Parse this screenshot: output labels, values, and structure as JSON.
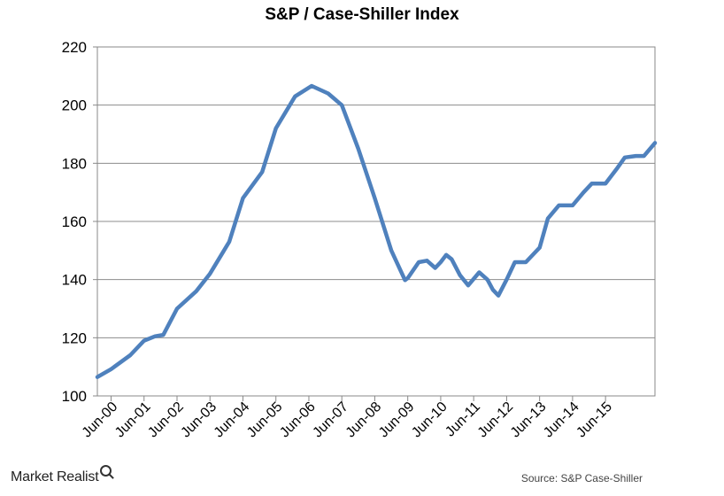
{
  "chart_data": {
    "type": "line",
    "title": "S&P / Case-Shiller Index",
    "xlabel": "",
    "ylabel": "",
    "ylim": [
      100,
      220
    ],
    "yticks": [
      100,
      120,
      140,
      160,
      180,
      200,
      220
    ],
    "xticks": [
      "Jun-00",
      "Jun-01",
      "Jun-02",
      "Jun-03",
      "Jun-04",
      "Jun-05",
      "Jun-06",
      "Jun-07",
      "Jun-08",
      "Jun-09",
      "Jun-10",
      "Jun-11",
      "Jun-12",
      "Jun-13",
      "Jun-14",
      "Jun-15"
    ],
    "grid": true,
    "line_color": "#4F81BD",
    "series": [
      {
        "points": [
          [
            "Jan-00",
            106.5
          ],
          [
            "Jun-00",
            109.2
          ],
          [
            "Jan-01",
            114.0
          ],
          [
            "Jun-01",
            119.0
          ],
          [
            "Oct-01",
            120.5
          ],
          [
            "Jan-02",
            121.0
          ],
          [
            "Jun-02",
            130.0
          ],
          [
            "Jan-03",
            136.0
          ],
          [
            "Jun-03",
            142.0
          ],
          [
            "Jan-04",
            153.0
          ],
          [
            "Jun-04",
            168.0
          ],
          [
            "Jan-05",
            177.0
          ],
          [
            "Jun-05",
            192.0
          ],
          [
            "Jan-06",
            203.0
          ],
          [
            "Jul-06",
            206.6
          ],
          [
            "Jan-07",
            204.0
          ],
          [
            "Jun-07",
            200.0
          ],
          [
            "Dec-07",
            185.0
          ],
          [
            "Jun-08",
            168.0
          ],
          [
            "Dec-08",
            150.0
          ],
          [
            "May-09",
            139.8
          ],
          [
            "Jun-09",
            140.5
          ],
          [
            "Oct-09",
            146.0
          ],
          [
            "Jan-10",
            146.5
          ],
          [
            "Apr-10",
            144.0
          ],
          [
            "Jun-10",
            146.0
          ],
          [
            "Aug-10",
            148.5
          ],
          [
            "Oct-10",
            147.0
          ],
          [
            "Jan-11",
            141.5
          ],
          [
            "Apr-11",
            138.0
          ],
          [
            "Aug-11",
            142.5
          ],
          [
            "Nov-11",
            140.0
          ],
          [
            "Jan-12",
            136.5
          ],
          [
            "Mar-12",
            134.5
          ],
          [
            "Jun-12",
            140.0
          ],
          [
            "Sep-12",
            146.0
          ],
          [
            "Jan-13",
            146.0
          ],
          [
            "Jun-13",
            151.0
          ],
          [
            "Sep-13",
            161.0
          ],
          [
            "Jan-14",
            165.5
          ],
          [
            "Jun-14",
            165.5
          ],
          [
            "Oct-14",
            170.0
          ],
          [
            "Jan-15",
            173.0
          ],
          [
            "Jun-15",
            173.0
          ],
          [
            "Oct-15",
            178.0
          ],
          [
            "Jan-16",
            182.0
          ],
          [
            "May-16",
            182.5
          ],
          [
            "Aug-16",
            182.5
          ],
          [
            "Dec-16",
            187.0
          ]
        ]
      }
    ]
  },
  "footer": {
    "brand": "Market Realist",
    "source": "Source: S&P Case-Shiller"
  }
}
